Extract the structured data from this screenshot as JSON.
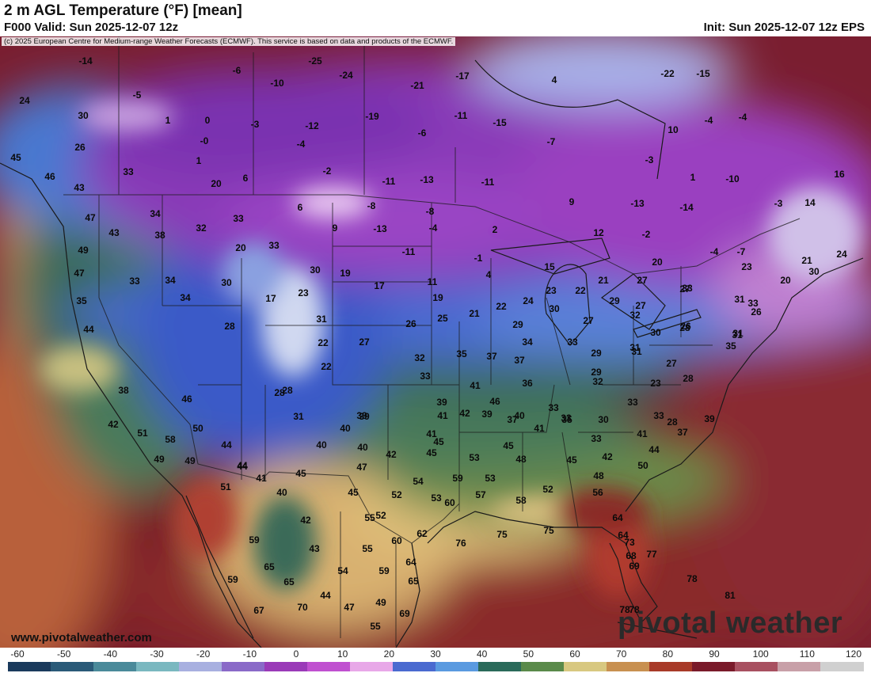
{
  "header": {
    "title": "2 m AGL Temperature (°F) [mean]",
    "valid": "F000 Valid: Sun 2025-12-07 12z",
    "init": "Init: Sun 2025-12-07 12z EPS"
  },
  "credit": "(c) 2025 European Centre for Medium-range Weather Forecasts (ECMWF). This service is based on data and products of the ECMWF.",
  "footer": {
    "site": "www.pivotalweather.com",
    "brand": "pivotal weather"
  },
  "colorbar": {
    "ticks": [
      "-60",
      "-50",
      "-40",
      "-30",
      "-20",
      "-10",
      "0",
      "10",
      "20",
      "30",
      "40",
      "50",
      "60",
      "70",
      "80",
      "90",
      "100",
      "110",
      "120"
    ],
    "colors": [
      "#1a3a5c",
      "#2a5a78",
      "#4a8a9a",
      "#7ab8c0",
      "#a8b0e0",
      "#8a6ac8",
      "#9a3ab8",
      "#c050d0",
      "#e8a8e8",
      "#4a6ad0",
      "#5a9ae0",
      "#2a6a5a",
      "#5a8a4a",
      "#d8c880",
      "#c89050",
      "#a83a28",
      "#7a1a2a",
      "#a85060",
      "#c8a0a8",
      "#d0d0d0"
    ]
  },
  "map_labels": [
    {
      "t": "-14"
    },
    {
      "t": "-25"
    },
    {
      "t": "-6"
    },
    {
      "t": "-24"
    },
    {
      "t": "-17"
    },
    {
      "t": "-22"
    },
    {
      "t": "-15"
    },
    {
      "t": "24"
    },
    {
      "t": "-5"
    },
    {
      "t": "-10"
    },
    {
      "t": "-21"
    },
    {
      "t": "4"
    },
    {
      "t": "30"
    },
    {
      "t": "1"
    },
    {
      "t": "0"
    },
    {
      "t": "-3"
    },
    {
      "t": "-12"
    },
    {
      "t": "-19"
    },
    {
      "t": "-11"
    },
    {
      "t": "-15"
    },
    {
      "t": "-4"
    },
    {
      "t": "-4"
    },
    {
      "t": "10"
    },
    {
      "t": "26"
    },
    {
      "t": "-0"
    },
    {
      "t": "-4"
    },
    {
      "t": "-6"
    },
    {
      "t": "-7"
    },
    {
      "t": "45"
    },
    {
      "t": "1"
    },
    {
      "t": "-3"
    },
    {
      "t": "16"
    },
    {
      "t": "33"
    },
    {
      "t": "-2"
    },
    {
      "t": "46"
    },
    {
      "t": "20"
    },
    {
      "t": "6"
    },
    {
      "t": "-11"
    },
    {
      "t": "-13"
    },
    {
      "t": "-11"
    },
    {
      "t": "1"
    },
    {
      "t": "-10"
    },
    {
      "t": "43"
    },
    {
      "t": "-8"
    },
    {
      "t": "-13"
    },
    {
      "t": "-14"
    },
    {
      "t": "-3"
    },
    {
      "t": "14"
    },
    {
      "t": "47"
    },
    {
      "t": "34"
    },
    {
      "t": "6"
    },
    {
      "t": "-8"
    },
    {
      "t": "9"
    },
    {
      "t": "43"
    },
    {
      "t": "38"
    },
    {
      "t": "32"
    },
    {
      "t": "33"
    },
    {
      "t": "9"
    },
    {
      "t": "-13"
    },
    {
      "t": "-4"
    },
    {
      "t": "2"
    },
    {
      "t": "12"
    },
    {
      "t": "-2"
    },
    {
      "t": "-4"
    },
    {
      "t": "-7"
    },
    {
      "t": "49"
    },
    {
      "t": "20"
    },
    {
      "t": "33"
    },
    {
      "t": "-11"
    },
    {
      "t": "-1"
    },
    {
      "t": "15"
    },
    {
      "t": "20"
    },
    {
      "t": "24"
    },
    {
      "t": "21"
    },
    {
      "t": "20"
    },
    {
      "t": "47"
    },
    {
      "t": "33"
    },
    {
      "t": "34"
    },
    {
      "t": "30"
    },
    {
      "t": "30"
    },
    {
      "t": "19"
    },
    {
      "t": "4"
    },
    {
      "t": "21"
    },
    {
      "t": "27"
    },
    {
      "t": "23"
    },
    {
      "t": "35"
    },
    {
      "t": "34"
    },
    {
      "t": "17"
    },
    {
      "t": "23"
    },
    {
      "t": "17"
    },
    {
      "t": "11"
    },
    {
      "t": "23"
    },
    {
      "t": "22"
    },
    {
      "t": "27"
    },
    {
      "t": "33"
    },
    {
      "t": "31"
    },
    {
      "t": "27"
    },
    {
      "t": "44"
    },
    {
      "t": "28"
    },
    {
      "t": "31"
    },
    {
      "t": "19"
    },
    {
      "t": "22"
    },
    {
      "t": "24"
    },
    {
      "t": "30"
    },
    {
      "t": "29"
    },
    {
      "t": "32"
    },
    {
      "t": "26"
    },
    {
      "t": "31"
    },
    {
      "t": "26"
    },
    {
      "t": "33"
    },
    {
      "t": "31"
    },
    {
      "t": "22"
    },
    {
      "t": "27"
    },
    {
      "t": "26"
    },
    {
      "t": "25"
    },
    {
      "t": "21"
    },
    {
      "t": "29"
    },
    {
      "t": "34"
    },
    {
      "t": "27"
    },
    {
      "t": "31"
    },
    {
      "t": "28"
    },
    {
      "t": "35"
    },
    {
      "t": "39"
    },
    {
      "t": "30"
    },
    {
      "t": "22"
    },
    {
      "t": "32"
    },
    {
      "t": "35"
    },
    {
      "t": "37"
    },
    {
      "t": "37"
    },
    {
      "t": "33"
    },
    {
      "t": "29"
    },
    {
      "t": "33"
    },
    {
      "t": "31"
    },
    {
      "t": "30"
    },
    {
      "t": "27"
    },
    {
      "t": "46"
    },
    {
      "t": "38"
    },
    {
      "t": "29"
    },
    {
      "t": "33"
    },
    {
      "t": "41"
    },
    {
      "t": "36"
    },
    {
      "t": "32"
    },
    {
      "t": "23"
    },
    {
      "t": "28"
    },
    {
      "t": "39"
    },
    {
      "t": "39"
    },
    {
      "t": "46"
    },
    {
      "t": "28"
    },
    {
      "t": "28"
    },
    {
      "t": "33"
    },
    {
      "t": "30"
    },
    {
      "t": "28"
    },
    {
      "t": "33"
    },
    {
      "t": "37"
    },
    {
      "t": "31"
    },
    {
      "t": "39"
    },
    {
      "t": "41"
    },
    {
      "t": "42"
    },
    {
      "t": "39"
    },
    {
      "t": "40"
    },
    {
      "t": "35"
    },
    {
      "t": "33"
    },
    {
      "t": "42"
    },
    {
      "t": "51"
    },
    {
      "t": "58"
    },
    {
      "t": "50"
    },
    {
      "t": "40"
    },
    {
      "t": "41"
    },
    {
      "t": "40"
    },
    {
      "t": "41"
    },
    {
      "t": "33"
    },
    {
      "t": "41"
    },
    {
      "t": "37"
    },
    {
      "t": "44"
    },
    {
      "t": "40"
    },
    {
      "t": "49"
    },
    {
      "t": "49"
    },
    {
      "t": "44"
    },
    {
      "t": "45"
    },
    {
      "t": "42"
    },
    {
      "t": "45"
    },
    {
      "t": "45"
    },
    {
      "t": "53"
    },
    {
      "t": "48"
    },
    {
      "t": "45"
    },
    {
      "t": "42"
    },
    {
      "t": "44"
    },
    {
      "t": "44"
    },
    {
      "t": "47"
    },
    {
      "t": "50"
    },
    {
      "t": "41"
    },
    {
      "t": "45"
    },
    {
      "t": "48"
    },
    {
      "t": "51"
    },
    {
      "t": "40"
    },
    {
      "t": "54"
    },
    {
      "t": "59"
    },
    {
      "t": "53"
    },
    {
      "t": "45"
    },
    {
      "t": "52"
    },
    {
      "t": "52"
    },
    {
      "t": "56"
    },
    {
      "t": "60"
    },
    {
      "t": "57"
    },
    {
      "t": "58"
    },
    {
      "t": "53"
    },
    {
      "t": "42"
    },
    {
      "t": "55"
    },
    {
      "t": "52"
    },
    {
      "t": "64"
    },
    {
      "t": "59"
    },
    {
      "t": "60"
    },
    {
      "t": "62"
    },
    {
      "t": "76"
    },
    {
      "t": "75"
    },
    {
      "t": "75"
    },
    {
      "t": "64"
    },
    {
      "t": "73"
    },
    {
      "t": "43"
    },
    {
      "t": "55"
    },
    {
      "t": "65"
    },
    {
      "t": "64"
    },
    {
      "t": "68"
    },
    {
      "t": "77"
    },
    {
      "t": "54"
    },
    {
      "t": "59"
    },
    {
      "t": "69"
    },
    {
      "t": "59"
    },
    {
      "t": "65"
    },
    {
      "t": "65"
    },
    {
      "t": "78"
    },
    {
      "t": "78"
    },
    {
      "t": "44"
    },
    {
      "t": "81"
    },
    {
      "t": "49"
    },
    {
      "t": "67"
    },
    {
      "t": "70"
    },
    {
      "t": "47"
    },
    {
      "t": "69"
    },
    {
      "t": "78"
    },
    {
      "t": "55"
    }
  ]
}
